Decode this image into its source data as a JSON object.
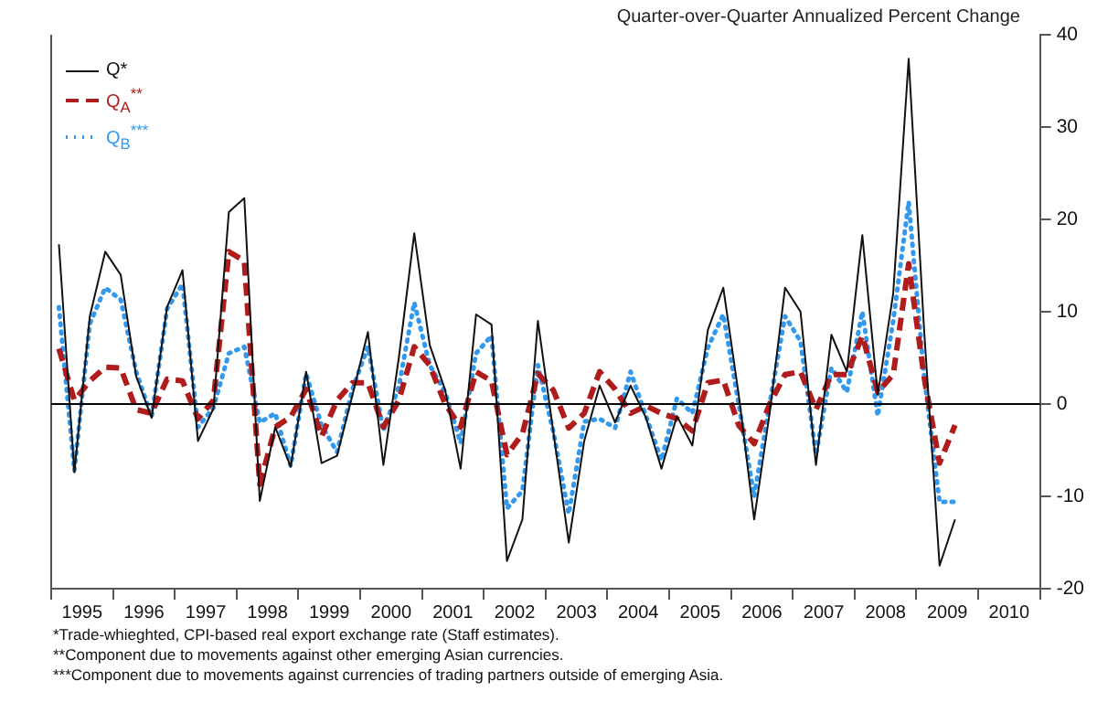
{
  "chart_data": {
    "type": "line",
    "ylabel": "Quarter-over-Quarter Annualized Percent Change",
    "x": [
      1995.125,
      1995.375,
      1995.625,
      1995.875,
      1996.125,
      1996.375,
      1996.625,
      1996.875,
      1997.125,
      1997.375,
      1997.625,
      1997.875,
      1998.125,
      1998.375,
      1998.625,
      1998.875,
      1999.125,
      1999.375,
      1999.625,
      1999.875,
      2000.125,
      2000.375,
      2000.625,
      2000.875,
      2001.125,
      2001.375,
      2001.625,
      2001.875,
      2002.125,
      2002.375,
      2002.625,
      2002.875,
      2003.125,
      2003.375,
      2003.625,
      2003.875,
      2004.125,
      2004.375,
      2004.625,
      2004.875,
      2005.125,
      2005.375,
      2005.625,
      2005.875,
      2006.125,
      2006.375,
      2006.625,
      2006.875,
      2007.125,
      2007.375,
      2007.625,
      2007.875,
      2008.125,
      2008.375,
      2008.625,
      2008.875,
      2009.125,
      2009.375,
      2009.625
    ],
    "series": [
      {
        "name": "Q*",
        "color": "#111111",
        "line_style": "solid",
        "values": [
          17.3,
          -7.4,
          9.5,
          16.5,
          14,
          3,
          -1.5,
          10.5,
          14.5,
          -4,
          -0.5,
          20.8,
          22.3,
          -10.5,
          -2.5,
          -6.8,
          3.5,
          -6.4,
          -5.6,
          1,
          7.8,
          -6.6,
          5,
          18.5,
          6.4,
          1.5,
          -7,
          9.7,
          8.6,
          -17,
          -12.5,
          9,
          -3,
          -15,
          -4,
          2,
          -2,
          2,
          -1.5,
          -7,
          -1.3,
          -4.5,
          8,
          12.6,
          1,
          -12.5,
          -1,
          12.6,
          10,
          -6.6,
          7.5,
          3.5,
          18.3,
          1,
          12,
          37.4,
          8,
          -17.5,
          -12.5
        ]
      },
      {
        "name": "Q$_{A}$$^{**}$",
        "color": "#b01c1c",
        "line_style": "dashed",
        "values": [
          6,
          0.4,
          2.5,
          4,
          3.9,
          -0.6,
          -1,
          2.7,
          2.5,
          -1.6,
          0.4,
          16.5,
          15.5,
          -8.7,
          -2.5,
          -1.4,
          1.6,
          -3.5,
          0.4,
          2.3,
          2.3,
          -2.5,
          0.4,
          6.2,
          4.2,
          0,
          -2.5,
          3.5,
          2.5,
          -5.5,
          -3.2,
          3.3,
          1.5,
          -2.6,
          -1,
          3.5,
          1.6,
          -1,
          -0.2,
          -1,
          -1.6,
          -2.9,
          2.3,
          2.6,
          -2.3,
          -4.3,
          0,
          3.2,
          3.5,
          -0.6,
          3.2,
          3.2,
          7.4,
          1.3,
          3.2,
          15.2,
          2.9,
          -6.4,
          -2.3
        ]
      },
      {
        "name": "Q$_{B}$$^{***}$",
        "color": "#3399ee",
        "line_style": "dotted",
        "values": [
          10.5,
          -7.2,
          8.7,
          12.6,
          11.3,
          3.5,
          -1.4,
          10.3,
          13,
          -2.5,
          -0.4,
          5.5,
          6.2,
          -2,
          -1,
          -6.7,
          3.3,
          -2.3,
          -5.2,
          1.6,
          6.2,
          -2.9,
          1.9,
          11,
          4.2,
          1.3,
          -4.2,
          5.5,
          7.4,
          -11.3,
          -9.4,
          4.2,
          -3,
          -11.9,
          -1.9,
          -1.6,
          -2.6,
          3.5,
          -1.3,
          -6.1,
          0.6,
          -1,
          6.1,
          9.7,
          0,
          -10,
          0,
          9.5,
          6.8,
          -5.5,
          3.9,
          1.3,
          10,
          -1.3,
          9,
          21.9,
          3,
          -10.6,
          -10.6
        ]
      }
    ],
    "xlim": [
      1995,
      2011
    ],
    "xticks": [
      {
        "value": 1995,
        "label": null
      },
      {
        "value": 1995.5,
        "label": "1995"
      },
      {
        "value": 1996,
        "label": null
      },
      {
        "value": 1996.5,
        "label": "1996"
      },
      {
        "value": 1997,
        "label": null
      },
      {
        "value": 1997.5,
        "label": "1997"
      },
      {
        "value": 1998,
        "label": null
      },
      {
        "value": 1998.5,
        "label": "1998"
      },
      {
        "value": 1999,
        "label": null
      },
      {
        "value": 1999.5,
        "label": "1999"
      },
      {
        "value": 2000,
        "label": null
      },
      {
        "value": 2000.5,
        "label": "2000"
      },
      {
        "value": 2001,
        "label": null
      },
      {
        "value": 2001.5,
        "label": "2001"
      },
      {
        "value": 2002,
        "label": null
      },
      {
        "value": 2002.5,
        "label": "2002"
      },
      {
        "value": 2003,
        "label": null
      },
      {
        "value": 2003.5,
        "label": "2003"
      },
      {
        "value": 2004,
        "label": null
      },
      {
        "value": 2004.5,
        "label": "2004"
      },
      {
        "value": 2005,
        "label": null
      },
      {
        "value": 2005.5,
        "label": "2005"
      },
      {
        "value": 2006,
        "label": null
      },
      {
        "value": 2006.5,
        "label": "2006"
      },
      {
        "value": 2007,
        "label": null
      },
      {
        "value": 2007.5,
        "label": "2007"
      },
      {
        "value": 2008,
        "label": null
      },
      {
        "value": 2008.5,
        "label": "2008"
      },
      {
        "value": 2009,
        "label": null
      },
      {
        "value": 2009.5,
        "label": "2009"
      },
      {
        "value": 2010,
        "label": null
      },
      {
        "value": 2010.5,
        "label": "2010"
      },
      {
        "value": 2011,
        "label": null
      }
    ],
    "ylim": [
      -20,
      40
    ],
    "yticks": [
      -20,
      -10,
      0,
      10,
      20,
      30,
      40
    ],
    "ref_lines": [
      {
        "axis": "y",
        "value": 0,
        "color": "#000000"
      }
    ],
    "legend": "top left",
    "marker": "none",
    "annotations": [
      "*Trade-whieghted, CPI-based real export exchange rate (Staff estimates).",
      "**Component due to movements against other emerging Asian currencies.",
      "***Component due to movements against currencies of trading partners outside of emerging Asia."
    ]
  }
}
